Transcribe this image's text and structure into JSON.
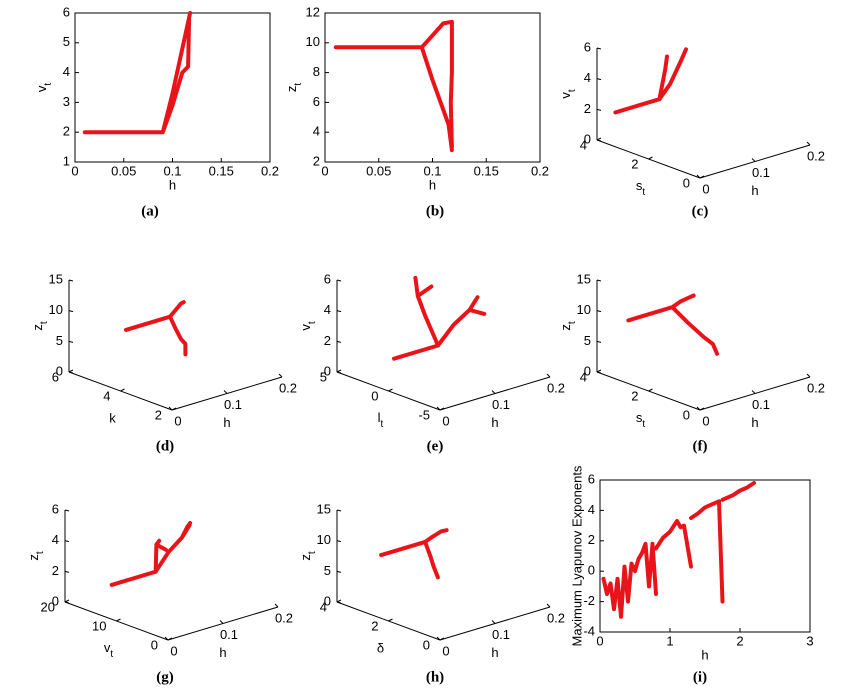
{
  "chart_data": [
    {
      "type": "line",
      "caption": "(a)",
      "xlabel": "h",
      "ylabel": {
        "text": "v",
        "subscript": "t"
      },
      "xlim": [
        0,
        0.2
      ],
      "xticks": [
        0,
        0.05,
        0.1,
        0.15,
        0.2
      ],
      "ylim": [
        1,
        6
      ],
      "yticks": [
        1,
        2,
        3,
        4,
        5,
        6
      ],
      "x": [
        0.01,
        0.09,
        null,
        0.09,
        0.1,
        0.11,
        0.118,
        null,
        0.09,
        0.1,
        0.11,
        0.116,
        0.117
      ],
      "y": [
        2,
        2,
        null,
        2,
        3.3,
        4.8,
        6,
        null,
        2,
        2.9,
        4,
        4.2,
        5.8
      ]
    },
    {
      "type": "line",
      "caption": "(b)",
      "xlabel": "h",
      "ylabel": {
        "text": "z",
        "subscript": "t"
      },
      "xlim": [
        0,
        0.2
      ],
      "xticks": [
        0,
        0.05,
        0.1,
        0.15,
        0.2
      ],
      "ylim": [
        2,
        12
      ],
      "yticks": [
        2,
        4,
        6,
        8,
        10,
        12
      ],
      "x": [
        0.01,
        0.09,
        null,
        0.09,
        0.1,
        0.11,
        0.118,
        null,
        0.09,
        0.1,
        0.11,
        0.115,
        0.118,
        null,
        0.118,
        0.118,
        0.117,
        0.118
      ],
      "y": [
        9.7,
        9.7,
        null,
        9.7,
        10.5,
        11.3,
        11.4,
        null,
        9.7,
        7.5,
        5.5,
        4.5,
        2.8,
        null,
        11.4,
        8,
        6,
        3
      ]
    },
    {
      "type": "line3d",
      "caption": "(c)",
      "xlabel": "h",
      "ylabel": {
        "text": "s",
        "subscript": "t"
      },
      "zlabel": {
        "text": "v",
        "subscript": "t"
      },
      "xlim": [
        0,
        0.2
      ],
      "xticks": [
        0,
        0.1,
        0.2
      ],
      "ylim": [
        0,
        4
      ],
      "yticks": [
        0,
        2,
        4
      ],
      "zlim": [
        0,
        6
      ],
      "zticks": [
        0,
        2,
        4,
        6
      ],
      "x": [
        0.01,
        0.09,
        0.1,
        0.11,
        0.115,
        null,
        0.09,
        0.1,
        0.11,
        0.118
      ],
      "y": [
        3.5,
        3.5,
        3.3,
        3.1,
        3.0,
        null,
        3.5,
        3.6,
        3.7,
        3.8
      ],
      "z": [
        2,
        2,
        3,
        4.5,
        5.3,
        null,
        2,
        2.8,
        3.6,
        4.3
      ]
    },
    {
      "type": "line3d",
      "caption": "(d)",
      "xlabel": "h",
      "ylabel": "k",
      "zlabel": {
        "text": "z",
        "subscript": "t"
      },
      "xlim": [
        0,
        0.2
      ],
      "xticks": [
        0,
        0.1,
        0.2
      ],
      "ylim": [
        2,
        6
      ],
      "yticks": [
        2,
        4,
        6
      ],
      "zlim": [
        0,
        15
      ],
      "zticks": [
        0,
        5,
        10,
        15
      ],
      "x": [
        0.01,
        0.09,
        null,
        0.09,
        0.1,
        0.11,
        0.115,
        null,
        0.09,
        0.1,
        0.11,
        0.118,
        0.118
      ],
      "y": [
        4,
        4,
        null,
        4,
        4,
        4,
        4,
        null,
        4,
        4,
        4,
        4,
        4
      ],
      "z": [
        9.7,
        9.7,
        null,
        9.7,
        10.5,
        11.3,
        11.4,
        null,
        9.7,
        7.5,
        5.5,
        4.5,
        2.8
      ]
    },
    {
      "type": "line3d",
      "caption": "(e)",
      "xlabel": "h",
      "ylabel": {
        "text": "l",
        "subscript": "t"
      },
      "zlabel": {
        "text": "v",
        "subscript": "t"
      },
      "xlim": [
        0,
        0.2
      ],
      "xticks": [
        0,
        0.1,
        0.2
      ],
      "ylim": [
        -5,
        5
      ],
      "yticks": [
        -5,
        0,
        5
      ],
      "zlim": [
        0,
        6
      ],
      "zticks": [
        0,
        2,
        4,
        6
      ],
      "x": [
        0.01,
        0.09,
        null,
        0.09,
        0.095,
        0.1,
        0.105,
        null,
        0.1,
        0.106,
        null,
        0.09,
        0.1,
        0.11,
        0.115,
        null,
        0.11,
        0.118
      ],
      "y": [
        0,
        0,
        null,
        0,
        1.5,
        2.5,
        3,
        null,
        2.5,
        1.5,
        null,
        0,
        -1,
        -2,
        -2.5,
        null,
        -2,
        -3
      ],
      "z": [
        2,
        2,
        null,
        2,
        3.5,
        4.5,
        5.5,
        null,
        4.5,
        5.3,
        null,
        2,
        3.5,
        4.6,
        5.5,
        null,
        4.6,
        4.5
      ]
    },
    {
      "type": "line3d",
      "caption": "(f)",
      "xlabel": "h",
      "ylabel": {
        "text": "s",
        "subscript": "t"
      },
      "zlabel": {
        "text": "z",
        "subscript": "t"
      },
      "xlim": [
        0,
        0.2
      ],
      "xticks": [
        0,
        0.1,
        0.2
      ],
      "ylim": [
        0,
        4
      ],
      "yticks": [
        0,
        2,
        4
      ],
      "zlim": [
        0,
        15
      ],
      "zticks": [
        0,
        5,
        10,
        15
      ],
      "x": [
        0.01,
        0.09,
        null,
        0.09,
        0.1,
        0.11,
        0.115,
        null,
        0.09,
        0.1,
        0.11,
        0.117,
        0.12
      ],
      "y": [
        3,
        3,
        null,
        3,
        2.9,
        2.8,
        2.7,
        null,
        3,
        2.6,
        2.2,
        2,
        1.9
      ],
      "z": [
        9.7,
        9.7,
        null,
        9.7,
        10.5,
        11,
        11.4,
        null,
        9.7,
        7.5,
        5.5,
        4.5,
        3
      ]
    },
    {
      "type": "line3d",
      "caption": "(g)",
      "xlabel": "h",
      "ylabel": {
        "text": "v",
        "subscript": "t"
      },
      "zlabel": {
        "text": "z",
        "subscript": "t"
      },
      "xlim": [
        0,
        0.2
      ],
      "xticks": [
        0,
        0.1,
        0.2
      ],
      "ylim": [
        0,
        20
      ],
      "yticks": [
        0,
        10,
        20
      ],
      "zlim": [
        0,
        6
      ],
      "zticks": [
        0,
        2,
        4,
        6
      ],
      "x": [
        0.01,
        0.09,
        null,
        0.09,
        0.095,
        0.1,
        0.105,
        null,
        0.1,
        0.11,
        0.115,
        null,
        0.09,
        0.1,
        0.11,
        0.115,
        null,
        0.11,
        0.118
      ],
      "y": [
        12,
        12,
        null,
        12,
        10,
        8,
        7,
        null,
        8,
        8,
        8,
        null,
        12,
        13,
        14,
        14,
        null,
        14,
        13
      ],
      "z": [
        2,
        2,
        null,
        2,
        3.5,
        4.6,
        5.5,
        null,
        4.6,
        5.2,
        5.4,
        null,
        2,
        2.8,
        3.3,
        3.5,
        null,
        3.3,
        3
      ]
    },
    {
      "type": "line3d",
      "caption": "(h)",
      "xlabel": "h",
      "ylabel": "δ",
      "zlabel": {
        "text": "z",
        "subscript": "t"
      },
      "xlim": [
        0,
        0.2
      ],
      "xticks": [
        0,
        0.1,
        0.2
      ],
      "ylim": [
        0,
        4
      ],
      "yticks": [
        0,
        2,
        4
      ],
      "zlim": [
        0,
        15
      ],
      "zticks": [
        0,
        5,
        10,
        15
      ],
      "x": [
        0.01,
        0.09,
        null,
        0.09,
        0.1,
        0.11,
        0.115,
        null,
        0.09,
        0.1,
        0.11,
        0.118
      ],
      "y": [
        2.5,
        2.5,
        null,
        2.5,
        2.4,
        2.3,
        2.2,
        null,
        2.5,
        2.5,
        2.6,
        2.6
      ],
      "z": [
        9.7,
        9.7,
        null,
        9.7,
        10.5,
        11.2,
        11.4,
        null,
        9.7,
        7,
        5,
        3
      ]
    },
    {
      "type": "line",
      "caption": "(i)",
      "xlabel": "h",
      "ylabel": "Maximum Lyapunov Exponents",
      "xlim": [
        0,
        3
      ],
      "xticks": [
        0,
        1,
        2,
        3
      ],
      "ylim": [
        -4,
        6
      ],
      "yticks": [
        -4,
        -2,
        0,
        2,
        4,
        6
      ],
      "x": [
        0.05,
        0.1,
        0.15,
        0.2,
        0.25,
        0.3,
        0.35,
        0.4,
        0.45,
        0.5,
        0.55,
        0.6,
        0.65,
        0.7,
        0.75,
        0.8,
        null,
        0.8,
        0.9,
        1.0,
        1.1,
        1.15,
        1.2,
        1.3,
        null,
        1.3,
        1.4,
        1.5,
        1.6,
        1.7,
        1.75,
        null,
        1.75,
        1.8,
        1.9,
        2.0,
        2.1,
        2.2
      ],
      "y": [
        -0.5,
        -1.5,
        -0.8,
        -2.5,
        -0.5,
        -3,
        0.3,
        -2,
        0.5,
        0,
        0.8,
        1.2,
        1.8,
        -1,
        1.8,
        -1.5,
        null,
        1.5,
        2.2,
        2.6,
        3.3,
        2.9,
        3.0,
        0.3,
        null,
        3.5,
        3.8,
        4.2,
        4.4,
        4.6,
        -2,
        null,
        4.7,
        4.8,
        5.0,
        5.3,
        5.5,
        5.8
      ]
    }
  ]
}
